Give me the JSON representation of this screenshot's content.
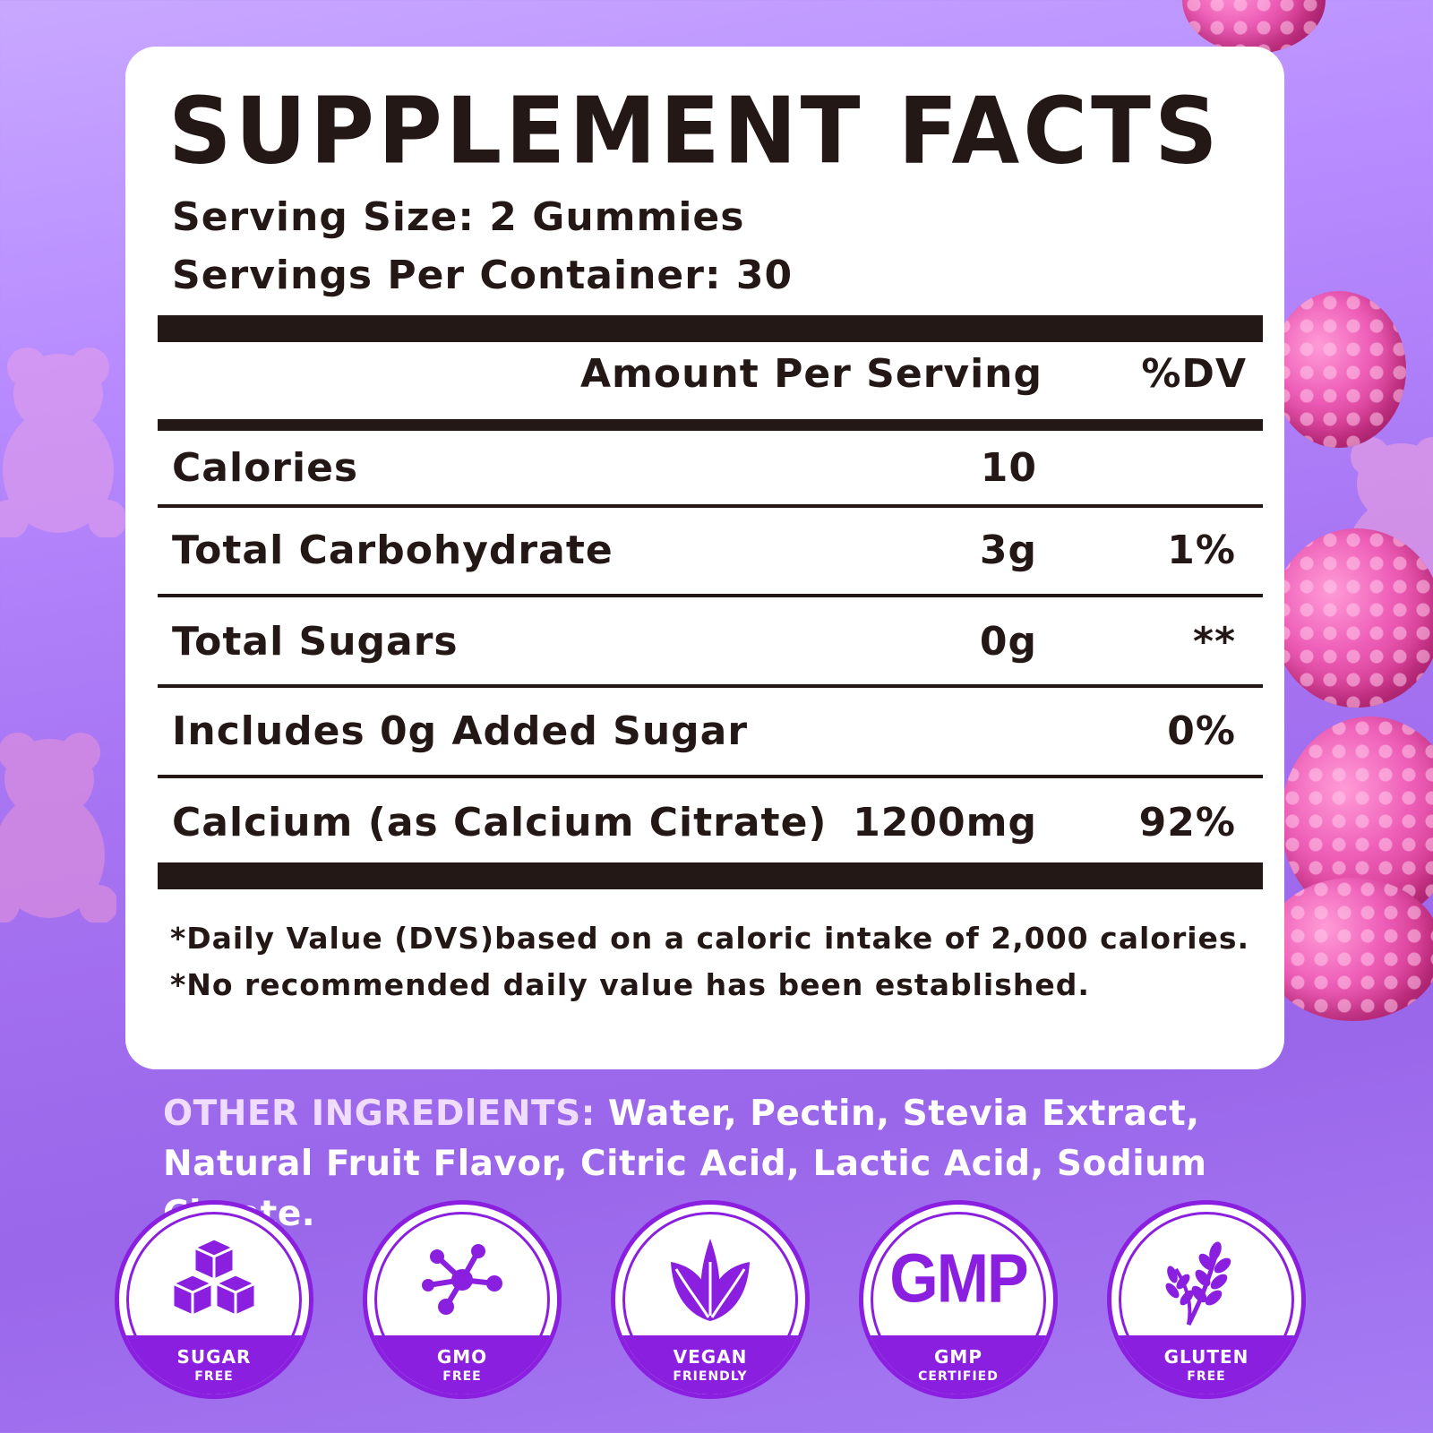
{
  "title": "SUPPLEMENT FACTS",
  "serving_size": "Serving Size: 2 Gummies",
  "servings_per_container": "Servings Per Container: 30",
  "header": {
    "amount": "Amount Per Serving",
    "dv": "%DV"
  },
  "rows": [
    {
      "name": "Calories",
      "amount": "10",
      "dv": ""
    },
    {
      "name": "Total Carbohydrate",
      "amount": "3g",
      "dv": "1%"
    },
    {
      "name": "Total Sugars",
      "amount": "0g",
      "dv": "**"
    },
    {
      "name": "Includes 0g Added Sugar",
      "amount": "",
      "dv": "0%"
    },
    {
      "name": "Calcium (as Calcium Citrate)",
      "amount": "1200mg",
      "dv": "92%"
    }
  ],
  "footnotes": [
    "*Daily Value (DVS)based on a caloric intake of 2,000 calories.",
    "*No recommended daily value has been established."
  ],
  "other_ingredients": {
    "label": "OTHER INGREDlENTS:",
    "text": " Water, Pectin, Stevia Extract, Natural Fruit Flavor, Citric Acid, Lactic Acid, Sodium Citrate."
  },
  "badges": [
    {
      "icon": "sugar-cubes-icon",
      "line1": "SUGAR",
      "line2": "FREE"
    },
    {
      "icon": "molecule-icon",
      "line1": "GMO",
      "line2": "FREE"
    },
    {
      "icon": "leaves-icon",
      "line1": "VEGAN",
      "line2": "FRIENDLY"
    },
    {
      "icon": "gmp-icon",
      "logo_text": "GMP",
      "line1": "GMP",
      "line2": "CERTIFIED"
    },
    {
      "icon": "wheat-icon",
      "line1": "GLUTEN",
      "line2": "FREE"
    }
  ],
  "colors": {
    "accent": "#8a1fe0",
    "text": "#231815",
    "card": "#ffffff"
  }
}
